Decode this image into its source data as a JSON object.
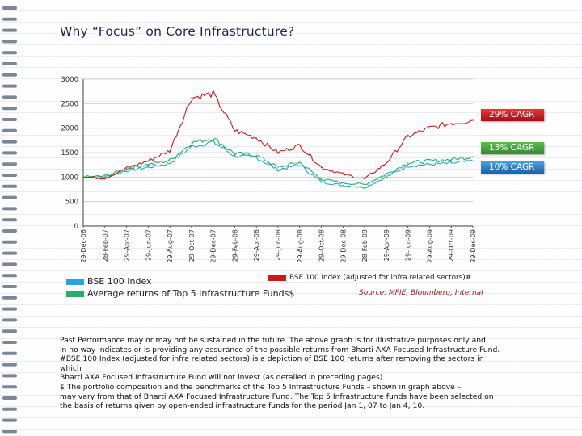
{
  "title": "Why “Focus” on Core Infrastructure?",
  "chart_data": {
    "type": "line",
    "categories": [
      "29-Dec-06",
      "28-Feb-07",
      "29-Apr-07",
      "29-Jun-07",
      "29-Aug-07",
      "29-Oct-07",
      "29-Dec-07",
      "29-Feb-08",
      "29-Apr-08",
      "29-Jun-08",
      "29-Aug-08",
      "29-Oct-08",
      "29-Dec-08",
      "28-Feb-09",
      "29-Apr-09",
      "29-Jun-09",
      "29-Aug-09",
      "29-Oct-09",
      "29-Dec-09"
    ],
    "ylim": [
      0,
      3000
    ],
    "yticks": [
      0,
      500,
      1000,
      1500,
      2000,
      2500,
      3000
    ],
    "series": [
      {
        "name": "BSE 100 Index",
        "color": "#27a3df",
        "values": [
          1000,
          1000,
          1130,
          1200,
          1280,
          1620,
          1720,
          1430,
          1400,
          1150,
          1250,
          900,
          830,
          790,
          1000,
          1230,
          1260,
          1280,
          1330
        ]
      },
      {
        "name": "Average returns of Top 5 Infrastructure Funds$",
        "color": "#24b06a",
        "values": [
          1000,
          1020,
          1170,
          1260,
          1340,
          1700,
          1800,
          1480,
          1450,
          1200,
          1300,
          960,
          880,
          850,
          1060,
          1290,
          1330,
          1360,
          1420
        ]
      },
      {
        "name": "BSE 100 Index (adjusted for infra related sectors)#",
        "color": "#cc1a1a",
        "values": [
          1000,
          980,
          1180,
          1330,
          1540,
          2620,
          2700,
          1950,
          1800,
          1500,
          1650,
          1200,
          1060,
          960,
          1290,
          1830,
          2000,
          2100,
          2160
        ]
      }
    ],
    "legend": [
      "BSE 100 Index",
      "Average returns of Top 5 Infrastructure Funds$",
      "BSE 100 Index (adjusted for infra related sectors)#"
    ]
  },
  "annotations": {
    "cagr_red": "29% CAGR",
    "cagr_green": "13% CAGR",
    "cagr_blue": "10% CAGR",
    "red_color": "#c8101a",
    "green_color": "#3fa540",
    "blue_color": "#1f78c4"
  },
  "source": "Source: MFIE, Bloomberg, Internal",
  "notes": [
    "Past Performance may or may not be sustained in the future. The above graph is for illustrative purposes only and",
    "in no way indicates or is providing any assurance of the possible returns from Bharti AXA Focused Infrastructure Fund.",
    "#BSE 100 Index (adjusted for infra related sectors) is a depiction of BSE 100 returns after removing the sectors in",
    "which",
    "Bharti AXA Focused Infrastructure Fund will not invest (as detailed in preceding pages).",
    "$ The portfolio composition and the benchmarks of the Top 5 Infrastructure Funds – shown in graph above –",
    "may vary from that of Bharti AXA Focused Infrastructure Fund. The Top 5 Infrastructure funds have been selected on",
    "the basis of returns given by open-ended infrastructure funds for the period Jan 1, 07 to Jan 4, 10."
  ]
}
